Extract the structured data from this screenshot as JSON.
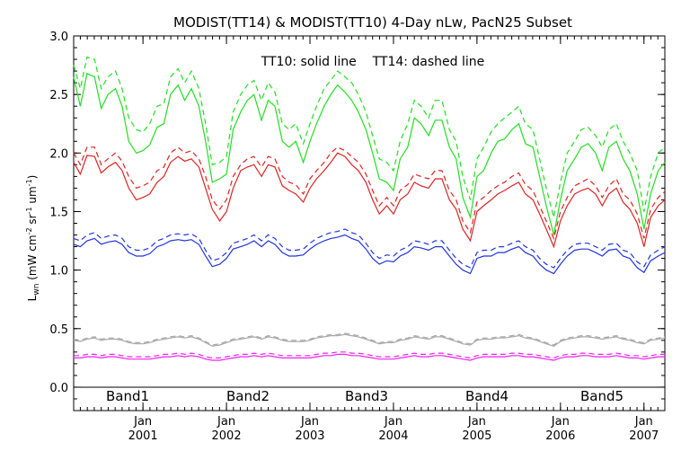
{
  "chart_data": {
    "type": "line",
    "title": "MODIST(TT14) & MODIST(TT10) 4-Day nLw, PacN25 Subset",
    "annotation": "TT10: solid line    TT14: dashed line",
    "ylabel_main": "L",
    "ylabel_sub": "wn",
    "ylabel_rest": "(mW cm",
    "ylabel_exp1": "-2",
    "ylabel_mid1": "sr",
    "ylabel_exp2": "-1",
    "ylabel_mid2": "um",
    "ylabel_exp3": "-1",
    "ylabel_close": ")",
    "ylim": [
      -0.2,
      3.0
    ],
    "yticks": [
      "0.0",
      "0.5",
      "1.0",
      "1.5",
      "2.0",
      "2.5",
      "3.0"
    ],
    "xlim": [
      2000.17,
      2007.25
    ],
    "xticks": [
      {
        "month": "Jan",
        "year": "2001",
        "x": 2001.0
      },
      {
        "month": "Jan",
        "year": "2002",
        "x": 2002.0
      },
      {
        "month": "Jan",
        "year": "2003",
        "x": 2003.0
      },
      {
        "month": "Jan",
        "year": "2004",
        "x": 2004.0
      },
      {
        "month": "Jan",
        "year": "2005",
        "x": 2005.0
      },
      {
        "month": "Jan",
        "year": "2006",
        "x": 2006.0
      },
      {
        "month": "Jan",
        "year": "2007",
        "x": 2007.0
      }
    ],
    "grid": false,
    "legend_position": "bottom-inside",
    "x": [
      2000.17,
      2000.25,
      2000.33,
      2000.42,
      2000.5,
      2000.58,
      2000.67,
      2000.75,
      2000.83,
      2000.92,
      2001.0,
      2001.08,
      2001.17,
      2001.25,
      2001.33,
      2001.42,
      2001.5,
      2001.58,
      2001.67,
      2001.75,
      2001.83,
      2001.92,
      2002.0,
      2002.08,
      2002.17,
      2002.25,
      2002.33,
      2002.42,
      2002.5,
      2002.58,
      2002.67,
      2002.75,
      2002.83,
      2002.92,
      2003.0,
      2003.08,
      2003.17,
      2003.25,
      2003.33,
      2003.42,
      2003.5,
      2003.58,
      2003.67,
      2003.75,
      2003.83,
      2003.92,
      2004.0,
      2004.08,
      2004.17,
      2004.25,
      2004.33,
      2004.42,
      2004.5,
      2004.58,
      2004.67,
      2004.75,
      2004.83,
      2004.92,
      2005.0,
      2005.08,
      2005.17,
      2005.25,
      2005.33,
      2005.42,
      2005.5,
      2005.58,
      2005.67,
      2005.75,
      2005.83,
      2005.92,
      2006.0,
      2006.08,
      2006.17,
      2006.25,
      2006.33,
      2006.42,
      2006.5,
      2006.58,
      2006.67,
      2006.75,
      2006.83,
      2006.92,
      2007.0,
      2007.08,
      2007.17,
      2007.25
    ],
    "series": [
      {
        "name": "Band1",
        "color": "#22dd22",
        "solid": [
          2.65,
          2.4,
          2.68,
          2.65,
          2.38,
          2.5,
          2.55,
          2.4,
          2.1,
          2.0,
          2.02,
          2.07,
          2.22,
          2.25,
          2.5,
          2.58,
          2.45,
          2.55,
          2.4,
          2.1,
          1.75,
          1.78,
          1.82,
          2.2,
          2.35,
          2.45,
          2.5,
          2.28,
          2.45,
          2.4,
          2.1,
          2.05,
          2.1,
          1.92,
          2.1,
          2.25,
          2.4,
          2.5,
          2.58,
          2.52,
          2.45,
          2.35,
          2.2,
          2.0,
          1.78,
          1.75,
          1.68,
          1.95,
          2.05,
          2.3,
          2.25,
          2.15,
          2.28,
          2.28,
          2.05,
          1.95,
          1.62,
          1.45,
          1.8,
          1.85,
          2.0,
          2.1,
          2.12,
          2.2,
          2.25,
          2.08,
          2.05,
          1.8,
          1.55,
          1.3,
          1.6,
          1.85,
          1.95,
          2.05,
          2.08,
          2.0,
          1.85,
          2.05,
          2.1,
          1.95,
          1.85,
          1.65,
          1.35,
          1.65,
          1.85,
          1.92
        ],
        "dashed": [
          2.75,
          2.55,
          2.82,
          2.8,
          2.55,
          2.65,
          2.7,
          2.55,
          2.3,
          2.2,
          2.18,
          2.25,
          2.4,
          2.42,
          2.65,
          2.72,
          2.6,
          2.7,
          2.55,
          2.25,
          1.9,
          1.92,
          1.97,
          2.35,
          2.5,
          2.58,
          2.62,
          2.45,
          2.6,
          2.52,
          2.25,
          2.2,
          2.25,
          2.08,
          2.25,
          2.4,
          2.55,
          2.62,
          2.7,
          2.65,
          2.6,
          2.5,
          2.35,
          2.15,
          1.95,
          1.92,
          1.85,
          2.1,
          2.25,
          2.45,
          2.4,
          2.3,
          2.45,
          2.45,
          2.2,
          2.1,
          1.8,
          1.6,
          1.95,
          2.05,
          2.18,
          2.25,
          2.3,
          2.35,
          2.4,
          2.25,
          2.2,
          1.95,
          1.7,
          1.45,
          1.75,
          2.0,
          2.1,
          2.2,
          2.22,
          2.15,
          2.05,
          2.2,
          2.25,
          2.1,
          2.0,
          1.85,
          1.5,
          1.8,
          2.0,
          2.05
        ]
      },
      {
        "name": "Band2",
        "color": "#dd2222",
        "solid": [
          1.92,
          1.82,
          1.98,
          1.97,
          1.83,
          1.88,
          1.92,
          1.85,
          1.7,
          1.6,
          1.62,
          1.65,
          1.75,
          1.8,
          1.92,
          1.97,
          1.93,
          1.95,
          1.88,
          1.7,
          1.52,
          1.42,
          1.5,
          1.7,
          1.85,
          1.88,
          1.9,
          1.8,
          1.9,
          1.88,
          1.72,
          1.68,
          1.65,
          1.58,
          1.7,
          1.78,
          1.85,
          1.92,
          2.0,
          1.97,
          1.9,
          1.85,
          1.75,
          1.6,
          1.48,
          1.55,
          1.48,
          1.6,
          1.65,
          1.75,
          1.72,
          1.7,
          1.78,
          1.78,
          1.6,
          1.52,
          1.35,
          1.25,
          1.5,
          1.55,
          1.6,
          1.65,
          1.68,
          1.72,
          1.75,
          1.65,
          1.6,
          1.48,
          1.35,
          1.2,
          1.42,
          1.55,
          1.65,
          1.68,
          1.7,
          1.65,
          1.55,
          1.65,
          1.7,
          1.58,
          1.52,
          1.4,
          1.2,
          1.45,
          1.55,
          1.6
        ],
        "dashed": [
          2.0,
          1.9,
          2.05,
          2.05,
          1.9,
          1.95,
          2.0,
          1.93,
          1.8,
          1.7,
          1.72,
          1.75,
          1.85,
          1.88,
          2.0,
          2.05,
          2.0,
          2.02,
          1.95,
          1.8,
          1.6,
          1.52,
          1.6,
          1.8,
          1.9,
          1.95,
          1.97,
          1.88,
          1.97,
          1.95,
          1.8,
          1.75,
          1.73,
          1.65,
          1.78,
          1.85,
          1.92,
          2.0,
          2.05,
          2.02,
          1.97,
          1.92,
          1.82,
          1.68,
          1.55,
          1.62,
          1.55,
          1.68,
          1.73,
          1.82,
          1.8,
          1.78,
          1.85,
          1.85,
          1.68,
          1.6,
          1.42,
          1.32,
          1.58,
          1.62,
          1.68,
          1.72,
          1.75,
          1.8,
          1.83,
          1.73,
          1.68,
          1.55,
          1.42,
          1.27,
          1.5,
          1.62,
          1.72,
          1.75,
          1.78,
          1.72,
          1.62,
          1.72,
          1.78,
          1.65,
          1.6,
          1.48,
          1.27,
          1.52,
          1.62,
          1.67
        ]
      },
      {
        "name": "Band3",
        "color": "#2233dd",
        "solid": [
          1.22,
          1.2,
          1.25,
          1.27,
          1.22,
          1.24,
          1.25,
          1.22,
          1.15,
          1.12,
          1.12,
          1.14,
          1.2,
          1.22,
          1.25,
          1.26,
          1.25,
          1.26,
          1.22,
          1.12,
          1.03,
          1.05,
          1.1,
          1.18,
          1.2,
          1.22,
          1.25,
          1.2,
          1.25,
          1.22,
          1.15,
          1.12,
          1.12,
          1.13,
          1.18,
          1.22,
          1.25,
          1.27,
          1.28,
          1.3,
          1.27,
          1.25,
          1.18,
          1.1,
          1.05,
          1.08,
          1.07,
          1.12,
          1.15,
          1.2,
          1.19,
          1.17,
          1.2,
          1.2,
          1.12,
          1.05,
          1.0,
          0.97,
          1.1,
          1.12,
          1.12,
          1.15,
          1.15,
          1.18,
          1.2,
          1.15,
          1.12,
          1.05,
          1.0,
          0.97,
          1.05,
          1.12,
          1.17,
          1.18,
          1.18,
          1.15,
          1.12,
          1.17,
          1.18,
          1.12,
          1.1,
          1.02,
          0.98,
          1.08,
          1.12,
          1.15
        ],
        "dashed": [
          1.27,
          1.25,
          1.3,
          1.32,
          1.27,
          1.29,
          1.3,
          1.27,
          1.2,
          1.17,
          1.17,
          1.19,
          1.25,
          1.27,
          1.3,
          1.31,
          1.3,
          1.31,
          1.27,
          1.17,
          1.08,
          1.1,
          1.15,
          1.23,
          1.25,
          1.27,
          1.3,
          1.25,
          1.3,
          1.27,
          1.2,
          1.17,
          1.17,
          1.18,
          1.23,
          1.27,
          1.3,
          1.32,
          1.33,
          1.35,
          1.32,
          1.3,
          1.23,
          1.15,
          1.1,
          1.13,
          1.12,
          1.17,
          1.2,
          1.25,
          1.24,
          1.22,
          1.25,
          1.25,
          1.17,
          1.1,
          1.05,
          1.02,
          1.15,
          1.17,
          1.17,
          1.2,
          1.2,
          1.23,
          1.25,
          1.2,
          1.17,
          1.1,
          1.05,
          1.02,
          1.1,
          1.17,
          1.22,
          1.23,
          1.23,
          1.2,
          1.17,
          1.22,
          1.23,
          1.17,
          1.15,
          1.07,
          1.03,
          1.13,
          1.17,
          1.2
        ]
      },
      {
        "name": "Band4",
        "color": "#a8a8a8",
        "solid": [
          0.4,
          0.39,
          0.41,
          0.42,
          0.4,
          0.41,
          0.41,
          0.4,
          0.38,
          0.37,
          0.37,
          0.38,
          0.4,
          0.41,
          0.42,
          0.43,
          0.42,
          0.43,
          0.41,
          0.38,
          0.35,
          0.36,
          0.38,
          0.4,
          0.41,
          0.42,
          0.43,
          0.41,
          0.43,
          0.42,
          0.4,
          0.39,
          0.39,
          0.39,
          0.4,
          0.42,
          0.43,
          0.44,
          0.44,
          0.45,
          0.44,
          0.43,
          0.41,
          0.39,
          0.37,
          0.38,
          0.38,
          0.4,
          0.41,
          0.43,
          0.42,
          0.41,
          0.43,
          0.43,
          0.41,
          0.39,
          0.37,
          0.36,
          0.4,
          0.41,
          0.41,
          0.42,
          0.42,
          0.43,
          0.44,
          0.42,
          0.41,
          0.39,
          0.37,
          0.35,
          0.39,
          0.41,
          0.42,
          0.43,
          0.43,
          0.42,
          0.41,
          0.42,
          0.43,
          0.41,
          0.4,
          0.38,
          0.37,
          0.4,
          0.41,
          0.42
        ],
        "dashed": [
          0.41,
          0.4,
          0.42,
          0.43,
          0.41,
          0.42,
          0.42,
          0.41,
          0.39,
          0.38,
          0.38,
          0.39,
          0.41,
          0.42,
          0.43,
          0.44,
          0.43,
          0.44,
          0.42,
          0.39,
          0.36,
          0.37,
          0.39,
          0.41,
          0.42,
          0.43,
          0.44,
          0.42,
          0.44,
          0.43,
          0.41,
          0.4,
          0.4,
          0.4,
          0.41,
          0.43,
          0.44,
          0.45,
          0.45,
          0.46,
          0.45,
          0.44,
          0.42,
          0.4,
          0.38,
          0.39,
          0.39,
          0.41,
          0.42,
          0.44,
          0.43,
          0.42,
          0.44,
          0.44,
          0.42,
          0.4,
          0.38,
          0.37,
          0.41,
          0.42,
          0.42,
          0.43,
          0.43,
          0.44,
          0.45,
          0.43,
          0.42,
          0.4,
          0.38,
          0.36,
          0.4,
          0.42,
          0.43,
          0.44,
          0.44,
          0.43,
          0.42,
          0.43,
          0.44,
          0.42,
          0.41,
          0.39,
          0.38,
          0.41,
          0.42,
          0.43
        ]
      },
      {
        "name": "Band5",
        "color": "#ee22ee",
        "solid": [
          0.25,
          0.25,
          0.26,
          0.26,
          0.25,
          0.26,
          0.26,
          0.25,
          0.24,
          0.24,
          0.24,
          0.24,
          0.25,
          0.26,
          0.26,
          0.27,
          0.26,
          0.27,
          0.26,
          0.24,
          0.23,
          0.23,
          0.24,
          0.25,
          0.26,
          0.26,
          0.27,
          0.26,
          0.27,
          0.26,
          0.25,
          0.25,
          0.25,
          0.25,
          0.25,
          0.26,
          0.27,
          0.27,
          0.28,
          0.28,
          0.27,
          0.27,
          0.26,
          0.25,
          0.24,
          0.24,
          0.24,
          0.25,
          0.26,
          0.27,
          0.26,
          0.26,
          0.27,
          0.27,
          0.26,
          0.25,
          0.24,
          0.23,
          0.25,
          0.26,
          0.26,
          0.26,
          0.26,
          0.27,
          0.27,
          0.26,
          0.26,
          0.25,
          0.24,
          0.23,
          0.25,
          0.26,
          0.26,
          0.27,
          0.27,
          0.26,
          0.26,
          0.26,
          0.27,
          0.26,
          0.25,
          0.25,
          0.24,
          0.25,
          0.26,
          0.26
        ],
        "dashed": [
          0.27,
          0.27,
          0.28,
          0.28,
          0.27,
          0.28,
          0.28,
          0.27,
          0.26,
          0.26,
          0.26,
          0.26,
          0.27,
          0.28,
          0.28,
          0.29,
          0.28,
          0.29,
          0.28,
          0.26,
          0.25,
          0.25,
          0.26,
          0.27,
          0.28,
          0.28,
          0.29,
          0.28,
          0.29,
          0.28,
          0.27,
          0.27,
          0.27,
          0.27,
          0.27,
          0.28,
          0.29,
          0.29,
          0.3,
          0.3,
          0.29,
          0.29,
          0.28,
          0.27,
          0.26,
          0.26,
          0.26,
          0.27,
          0.28,
          0.29,
          0.28,
          0.28,
          0.29,
          0.29,
          0.28,
          0.27,
          0.26,
          0.25,
          0.27,
          0.28,
          0.28,
          0.28,
          0.28,
          0.29,
          0.29,
          0.28,
          0.28,
          0.27,
          0.26,
          0.25,
          0.27,
          0.28,
          0.28,
          0.29,
          0.29,
          0.28,
          0.28,
          0.28,
          0.29,
          0.28,
          0.27,
          0.27,
          0.26,
          0.27,
          0.28,
          0.28
        ]
      }
    ]
  }
}
